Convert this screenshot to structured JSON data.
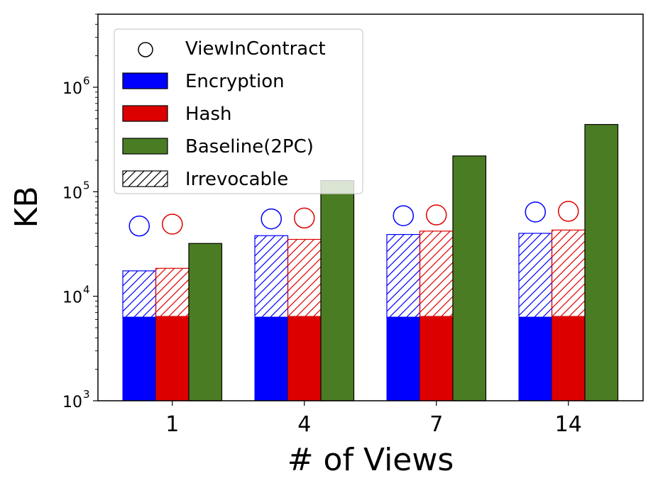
{
  "chart_data": {
    "type": "bar",
    "scale": "log",
    "xlabel": "# of Views",
    "ylabel": "KB",
    "ylim": [
      1000,
      5000000
    ],
    "yticks": [
      {
        "value": 1000,
        "base": "10",
        "exp": "3"
      },
      {
        "value": 10000,
        "base": "10",
        "exp": "4"
      },
      {
        "value": 100000,
        "base": "10",
        "exp": "5"
      },
      {
        "value": 1000000,
        "base": "10",
        "exp": "6"
      }
    ],
    "categories": [
      "1",
      "4",
      "7",
      "14"
    ],
    "series": [
      {
        "name": "Encryption",
        "color": "#0000ff",
        "base_values": [
          6300,
          6300,
          6300,
          6300
        ],
        "total_values": [
          17500,
          38000,
          39000,
          40000
        ],
        "view_in_contract": [
          47000,
          55000,
          59000,
          64000
        ]
      },
      {
        "name": "Hash",
        "color": "#dd0000",
        "base_values": [
          6400,
          6400,
          6400,
          6400
        ],
        "total_values": [
          18500,
          35000,
          42000,
          43000
        ],
        "view_in_contract": [
          49000,
          56000,
          60000,
          65000
        ]
      },
      {
        "name": "Baseline(2PC)",
        "color": "#4a7d23",
        "values": [
          32000,
          128000,
          220000,
          440000
        ]
      }
    ],
    "legend": {
      "placement": "top-left",
      "entries": [
        {
          "key": "view",
          "label": "ViewInContract",
          "marker": "circle"
        },
        {
          "key": "enc",
          "label": "Encryption",
          "marker": "box",
          "color": "#0000ff"
        },
        {
          "key": "hash",
          "label": "Hash",
          "marker": "box",
          "color": "#dd0000"
        },
        {
          "key": "base",
          "label": "Baseline(2PC)",
          "marker": "box",
          "color": "#4a7d23"
        },
        {
          "key": "irr",
          "label": "Irrevocable",
          "marker": "hatch"
        }
      ]
    }
  }
}
